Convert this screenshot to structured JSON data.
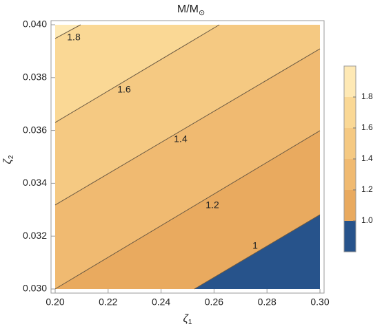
{
  "chart_data": {
    "type": "contour",
    "title": {
      "text": "M/M",
      "subscript": "⊙"
    },
    "xlabel": {
      "text": "ζ",
      "subscript": "1"
    },
    "ylabel": {
      "text": "ζ",
      "subscript": "2"
    },
    "xlim": [
      0.2,
      0.3
    ],
    "ylim": [
      0.03,
      0.04
    ],
    "xticks": [
      {
        "value": 0.2,
        "label": "0.20"
      },
      {
        "value": 0.22,
        "label": "0.22"
      },
      {
        "value": 0.24,
        "label": "0.24"
      },
      {
        "value": 0.26,
        "label": "0.26"
      },
      {
        "value": 0.28,
        "label": "0.28"
      },
      {
        "value": 0.3,
        "label": "0.30"
      }
    ],
    "yticks": [
      {
        "value": 0.03,
        "label": "0.030"
      },
      {
        "value": 0.032,
        "label": "0.032"
      },
      {
        "value": 0.034,
        "label": "0.034"
      },
      {
        "value": 0.036,
        "label": "0.036"
      },
      {
        "value": 0.038,
        "label": "0.038"
      },
      {
        "value": 0.04,
        "label": "0.040"
      }
    ],
    "contours": [
      {
        "level": 1,
        "x": [
          0.2526,
          0.3
        ],
        "y": [
          0.03,
          0.03281
        ]
      },
      {
        "level": 1.2,
        "x": [
          0.2,
          0.3
        ],
        "y": [
          0.03,
          0.03599
        ]
      },
      {
        "level": 1.4,
        "x": [
          0.2,
          0.3
        ],
        "y": [
          0.03318,
          0.03909
        ]
      },
      {
        "level": 1.6,
        "x": [
          0.2,
          0.262
        ],
        "y": [
          0.0363,
          0.04
        ]
      },
      {
        "level": 1.8,
        "x": [
          0.2,
          0.2096
        ],
        "y": [
          0.03948,
          0.04
        ]
      }
    ],
    "colorbar": {
      "lim": [
        0.8,
        2.0
      ],
      "ticks": [
        {
          "value": 1,
          "label": "1.0"
        },
        {
          "value": 1.2,
          "label": "1.2"
        },
        {
          "value": 1.4,
          "label": "1.4"
        },
        {
          "value": 1.6,
          "label": "1.6"
        },
        {
          "value": 1.8,
          "label": "1.8"
        }
      ],
      "colors": [
        "#27538b",
        "#e9aa5f",
        "#f0ba71",
        "#f5c982",
        "#fad895",
        "#fee9b5"
      ]
    }
  }
}
